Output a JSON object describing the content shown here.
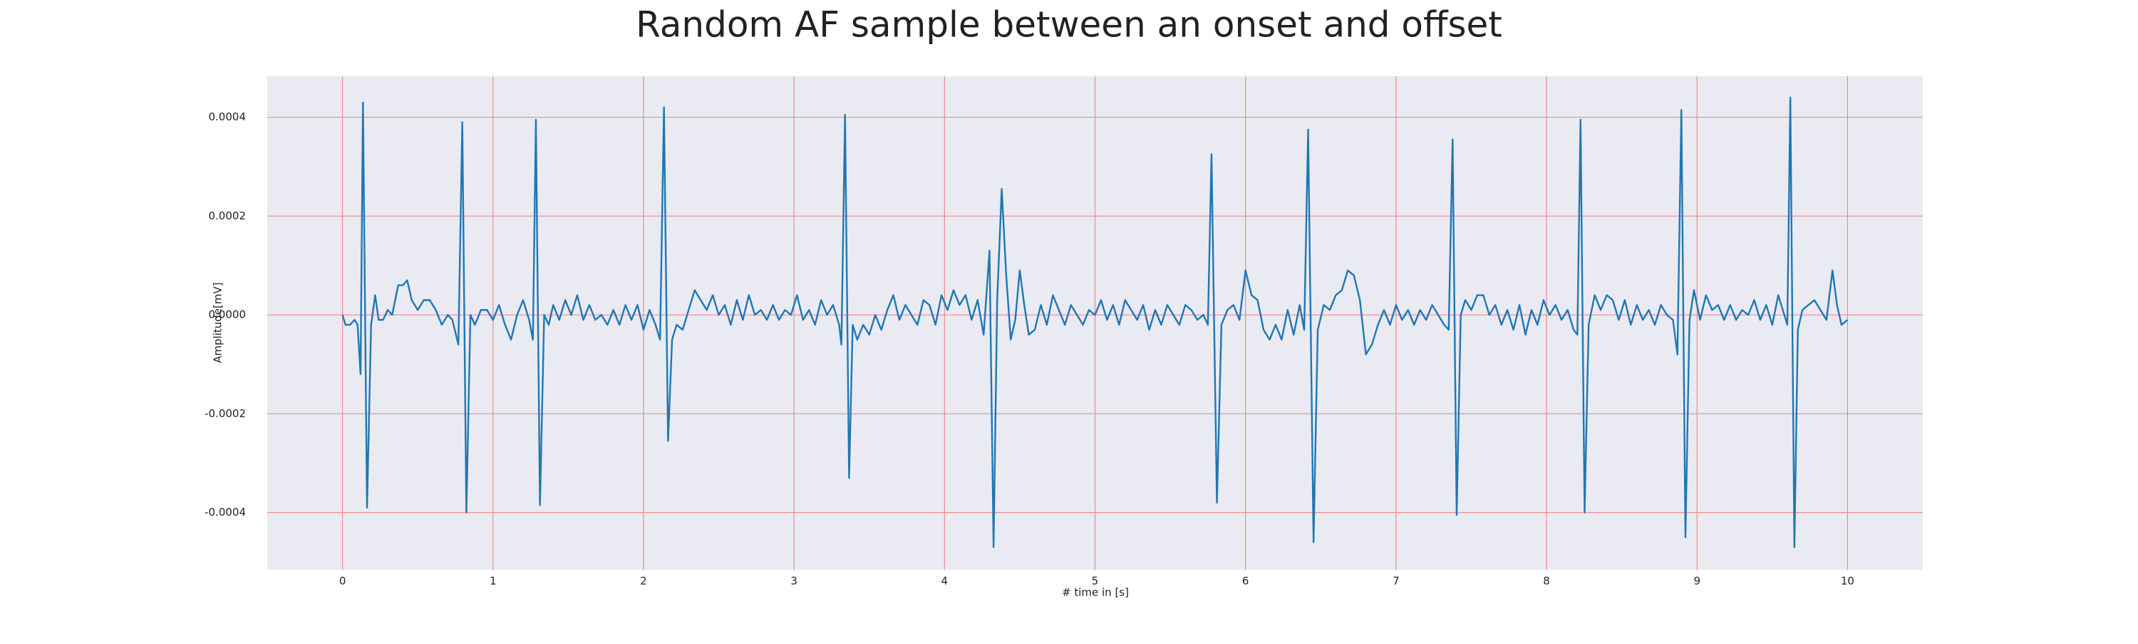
{
  "chart_data": {
    "type": "line",
    "title": "Random AF sample between an onset and offset",
    "xlabel": "# time in [s]",
    "ylabel": "Amplitude[mV]",
    "color": "#1f77b4",
    "grid": true,
    "grid_color": "#f08a8a",
    "background": "#eaeaf2",
    "xlim": [
      -0.5,
      10.5
    ],
    "ylim": [
      -0.000516,
      0.000483
    ],
    "xticks": [
      0,
      1,
      2,
      3,
      4,
      5,
      6,
      7,
      8,
      9,
      10
    ],
    "yticks": [
      -0.0004,
      -0.0002,
      {
        "value": 0,
        "label": "0.0000"
      },
      0.0002,
      0.0004
    ],
    "x": [
      0,
      0.02,
      0.05,
      0.08,
      0.1,
      0.12,
      0.136,
      0.163,
      0.19,
      0.217,
      0.24,
      0.27,
      0.3,
      0.33,
      0.37,
      0.4,
      0.43,
      0.46,
      0.5,
      0.54,
      0.58,
      0.62,
      0.66,
      0.7,
      0.73,
      0.77,
      0.796,
      0.823,
      0.85,
      0.88,
      0.92,
      0.96,
      1.0,
      1.04,
      1.08,
      1.12,
      1.16,
      1.2,
      1.24,
      1.265,
      1.285,
      1.312,
      1.34,
      1.37,
      1.4,
      1.44,
      1.48,
      1.52,
      1.56,
      1.6,
      1.64,
      1.68,
      1.72,
      1.76,
      1.8,
      1.84,
      1.88,
      1.92,
      1.96,
      2.0,
      2.04,
      2.08,
      2.11,
      2.136,
      2.163,
      2.19,
      2.22,
      2.26,
      2.3,
      2.34,
      2.38,
      2.42,
      2.46,
      2.5,
      2.54,
      2.58,
      2.62,
      2.66,
      2.7,
      2.74,
      2.78,
      2.82,
      2.86,
      2.9,
      2.94,
      2.98,
      3.02,
      3.06,
      3.1,
      3.14,
      3.18,
      3.22,
      3.26,
      3.3,
      3.315,
      3.339,
      3.366,
      3.39,
      3.42,
      3.46,
      3.5,
      3.54,
      3.58,
      3.62,
      3.66,
      3.7,
      3.74,
      3.78,
      3.82,
      3.86,
      3.9,
      3.94,
      3.98,
      4.02,
      4.06,
      4.1,
      4.14,
      4.18,
      4.22,
      4.26,
      4.299,
      4.326,
      4.35,
      4.38,
      4.41,
      4.44,
      4.47,
      4.5,
      4.53,
      4.56,
      4.6,
      4.64,
      4.68,
      4.72,
      4.76,
      4.8,
      4.84,
      4.88,
      4.92,
      4.96,
      5.0,
      5.04,
      5.08,
      5.12,
      5.16,
      5.2,
      5.24,
      5.28,
      5.32,
      5.36,
      5.4,
      5.44,
      5.48,
      5.52,
      5.56,
      5.6,
      5.64,
      5.68,
      5.72,
      5.75,
      5.774,
      5.81,
      5.84,
      5.88,
      5.92,
      5.96,
      6.0,
      6.04,
      6.08,
      6.12,
      6.16,
      6.2,
      6.24,
      6.28,
      6.32,
      6.36,
      6.39,
      6.416,
      6.452,
      6.48,
      6.52,
      6.56,
      6.6,
      6.64,
      6.68,
      6.72,
      6.76,
      6.8,
      6.84,
      6.88,
      6.92,
      6.96,
      7.0,
      7.04,
      7.08,
      7.12,
      7.16,
      7.2,
      7.24,
      7.28,
      7.32,
      7.35,
      7.376,
      7.403,
      7.43,
      7.46,
      7.5,
      7.54,
      7.58,
      7.62,
      7.66,
      7.7,
      7.74,
      7.78,
      7.82,
      7.86,
      7.9,
      7.94,
      7.98,
      8.02,
      8.06,
      8.1,
      8.14,
      8.18,
      8.205,
      8.226,
      8.253,
      8.28,
      8.32,
      8.36,
      8.4,
      8.44,
      8.48,
      8.52,
      8.56,
      8.6,
      8.64,
      8.68,
      8.72,
      8.76,
      8.8,
      8.84,
      8.87,
      8.896,
      8.923,
      8.95,
      8.98,
      9.02,
      9.06,
      9.1,
      9.14,
      9.18,
      9.22,
      9.26,
      9.3,
      9.34,
      9.38,
      9.42,
      9.46,
      9.5,
      9.54,
      9.58,
      9.6,
      9.62,
      9.647,
      9.67,
      9.7,
      9.74,
      9.78,
      9.82,
      9.86,
      9.9,
      9.93,
      9.96,
      10.0
    ],
    "values": [
      0,
      -2e-05,
      -2e-05,
      -1e-05,
      -2e-05,
      -0.00012,
      0.00043,
      -0.00039,
      -2e-05,
      4e-05,
      -1e-05,
      -1e-05,
      1e-05,
      0,
      6e-05,
      6e-05,
      7e-05,
      3e-05,
      1e-05,
      3e-05,
      3e-05,
      1e-05,
      -2e-05,
      0,
      -1e-05,
      -6e-05,
      0.00039,
      -0.0004,
      0,
      -2e-05,
      1e-05,
      1e-05,
      -1e-05,
      2e-05,
      -2e-05,
      -5e-05,
      0,
      3e-05,
      -1e-05,
      -5e-05,
      0.000395,
      -0.000385,
      0,
      -2e-05,
      2e-05,
      -1e-05,
      3e-05,
      0,
      4e-05,
      -1e-05,
      2e-05,
      -1e-05,
      0,
      -2e-05,
      1e-05,
      -2e-05,
      2e-05,
      -1e-05,
      2e-05,
      -3e-05,
      1e-05,
      -2e-05,
      -5e-05,
      0.00042,
      -0.000255,
      -5e-05,
      -2e-05,
      -3e-05,
      1e-05,
      5e-05,
      3e-05,
      1e-05,
      4e-05,
      0,
      2e-05,
      -2e-05,
      3e-05,
      -1e-05,
      4e-05,
      0,
      1e-05,
      -1e-05,
      2e-05,
      -1e-05,
      1e-05,
      0,
      4e-05,
      -1e-05,
      1e-05,
      -2e-05,
      3e-05,
      0,
      2e-05,
      -2e-05,
      -6e-05,
      0.000405,
      -0.00033,
      -2e-05,
      -5e-05,
      -2e-05,
      -4e-05,
      0,
      -3e-05,
      1e-05,
      4e-05,
      -1e-05,
      2e-05,
      0,
      -2e-05,
      3e-05,
      2e-05,
      -2e-05,
      4e-05,
      1e-05,
      5e-05,
      2e-05,
      4e-05,
      -1e-05,
      3e-05,
      -4e-05,
      0.00013,
      -0.00047,
      3e-05,
      0.000255,
      8e-05,
      -5e-05,
      -1e-05,
      9e-05,
      2e-05,
      -4e-05,
      -3e-05,
      2e-05,
      -2e-05,
      4e-05,
      1e-05,
      -2e-05,
      2e-05,
      0,
      -2e-05,
      1e-05,
      0,
      3e-05,
      -1e-05,
      2e-05,
      -2e-05,
      3e-05,
      1e-05,
      -1e-05,
      2e-05,
      -3e-05,
      1e-05,
      -2e-05,
      2e-05,
      0,
      -2e-05,
      2e-05,
      1e-05,
      -1e-05,
      0,
      -2e-05,
      0.000325,
      -0.00038,
      -2e-05,
      1e-05,
      2e-05,
      -1e-05,
      9e-05,
      4e-05,
      3e-05,
      -3e-05,
      -5e-05,
      -2e-05,
      -5e-05,
      1e-05,
      -4e-05,
      2e-05,
      -3e-05,
      0.000375,
      -0.00046,
      -3e-05,
      2e-05,
      1e-05,
      4e-05,
      5e-05,
      9e-05,
      8e-05,
      3e-05,
      -8e-05,
      -6e-05,
      -2e-05,
      1e-05,
      -2e-05,
      2e-05,
      -1e-05,
      1e-05,
      -2e-05,
      1e-05,
      -1e-05,
      2e-05,
      0,
      -2e-05,
      -3e-05,
      0.000355,
      -0.000405,
      0,
      3e-05,
      1e-05,
      4e-05,
      4e-05,
      0,
      2e-05,
      -2e-05,
      1e-05,
      -3e-05,
      2e-05,
      -4e-05,
      1e-05,
      -2e-05,
      3e-05,
      0,
      2e-05,
      -1e-05,
      1e-05,
      -3e-05,
      -4e-05,
      0.000395,
      -0.0004,
      -2e-05,
      4e-05,
      1e-05,
      4e-05,
      3e-05,
      -1e-05,
      3e-05,
      -2e-05,
      2e-05,
      -1e-05,
      1e-05,
      -2e-05,
      2e-05,
      0,
      -1e-05,
      -8e-05,
      0.000415,
      -0.00045,
      -1e-05,
      5e-05,
      -1e-05,
      4e-05,
      1e-05,
      2e-05,
      -1e-05,
      2e-05,
      -1e-05,
      1e-05,
      0,
      3e-05,
      -1e-05,
      2e-05,
      -2e-05,
      4e-05,
      0,
      -2e-05,
      0.00044,
      -0.00047,
      -3e-05,
      1e-05,
      2e-05,
      3e-05,
      1e-05,
      -1e-05,
      9e-05,
      2e-05,
      -2e-05,
      -1e-05
    ]
  }
}
